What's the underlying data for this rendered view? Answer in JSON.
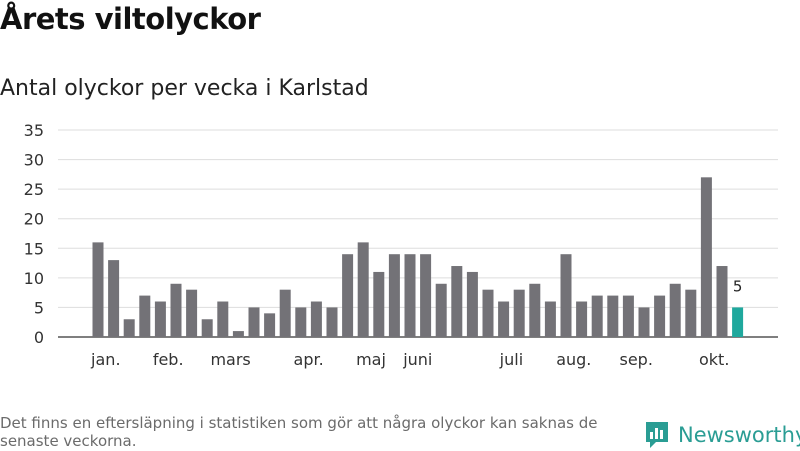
{
  "header": {
    "title": "Årets viltolyckor",
    "subtitle": "Antal olyckor per vecka i Karlstad"
  },
  "footer": {
    "note": "Det finns en eftersläpning i statistiken som gör att några olyckor kan saknas de senaste veckorna.",
    "brand": "Newsworthy",
    "brand_icon": "bar-chart-logo-icon"
  },
  "colors": {
    "bar": "#737277",
    "highlight": "#1fa89d",
    "grid": "#dddddd",
    "axis": "#555555",
    "brand": "#2a9d94"
  },
  "chart_data": {
    "type": "bar",
    "title": "Antal olyckor per vecka i Karlstad",
    "xlabel": "",
    "ylabel": "",
    "ylim": [
      0,
      35
    ],
    "yticks": [
      0,
      5,
      10,
      15,
      20,
      25,
      30,
      35
    ],
    "grid": true,
    "legend": "none",
    "values": [
      16,
      13,
      3,
      7,
      6,
      9,
      8,
      3,
      6,
      1,
      5,
      4,
      8,
      5,
      6,
      5,
      14,
      16,
      11,
      14,
      14,
      14,
      9,
      12,
      11,
      8,
      6,
      8,
      9,
      6,
      14,
      6,
      7,
      7,
      7,
      5,
      7,
      9,
      8,
      27,
      12,
      5
    ],
    "month_labels": [
      {
        "label": "jan.",
        "at_bar": 0.5
      },
      {
        "label": "feb.",
        "at_bar": 4.5
      },
      {
        "label": "mars",
        "at_bar": 8.5
      },
      {
        "label": "apr.",
        "at_bar": 13.5
      },
      {
        "label": "maj",
        "at_bar": 17.5
      },
      {
        "label": "juni",
        "at_bar": 20.5
      },
      {
        "label": "juli",
        "at_bar": 26.5
      },
      {
        "label": "aug.",
        "at_bar": 30.5
      },
      {
        "label": "sep.",
        "at_bar": 34.5
      },
      {
        "label": "okt.",
        "at_bar": 39.5
      }
    ],
    "highlighted_bar": 41,
    "data_labels": [
      {
        "bar": 41,
        "text": "5"
      }
    ]
  }
}
